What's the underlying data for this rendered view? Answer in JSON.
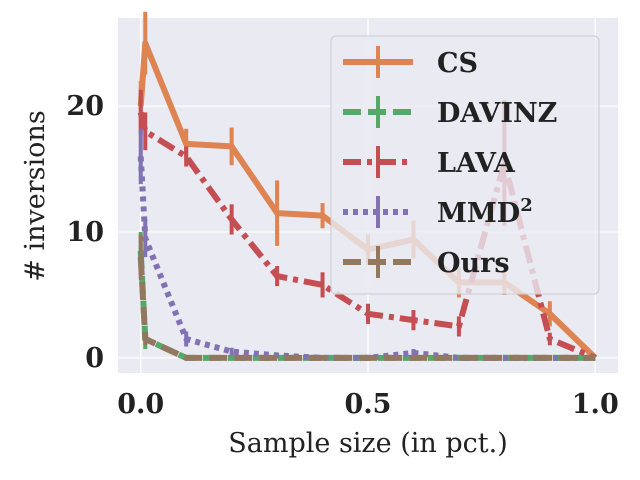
{
  "chart_data": {
    "type": "line",
    "title": "",
    "xlabel": "Sample size (in pct.)",
    "ylabel": "# inversions",
    "xlim": [
      -0.05,
      1.05
    ],
    "ylim": [
      -1.2,
      27.0
    ],
    "xticks": [
      0.0,
      0.5,
      1.0
    ],
    "xtick_labels": [
      "0.0",
      "0.5",
      "1.0"
    ],
    "yticks": [
      0,
      10,
      20
    ],
    "ytick_labels": [
      "0",
      "10",
      "20"
    ],
    "grid": true,
    "legend_position": "top-right",
    "x": [
      0.0,
      0.01,
      0.1,
      0.2,
      0.3,
      0.4,
      0.5,
      0.6,
      0.7,
      0.8,
      0.9,
      1.0
    ],
    "series": [
      {
        "name": "CS",
        "label_main": "CS",
        "color": "#dd8452",
        "dash": "solid",
        "values": [
          20,
          25,
          17,
          16.8,
          11.5,
          11.3,
          8.6,
          9.4,
          6.0,
          6.0,
          3.5,
          0.0
        ],
        "errors": [
          2.0,
          2.5,
          1.2,
          1.5,
          2.6,
          1.0,
          1.2,
          1.5,
          1.2,
          1.0,
          1.0,
          0.0
        ]
      },
      {
        "name": "DAVINZ",
        "label_main": "DAVINZ",
        "color": "#55a868",
        "dash": "dashed",
        "values": [
          8.5,
          1.5,
          0,
          0,
          0,
          0,
          0,
          0,
          0,
          0,
          0,
          0
        ],
        "errors": [
          1.5,
          0.8,
          0,
          0,
          0,
          0,
          0,
          0,
          0,
          0,
          0,
          0
        ]
      },
      {
        "name": "LAVA",
        "label_main": "LAVA",
        "color": "#c44e52",
        "dash": "dashdot",
        "values": [
          19.5,
          18,
          16,
          11,
          6.5,
          5.8,
          3.5,
          3.0,
          2.5,
          15.5,
          1.5,
          0.0
        ],
        "errors": [
          1.8,
          1.5,
          0.8,
          1.2,
          0.8,
          1.0,
          0.8,
          0.8,
          0.8,
          5.0,
          0.5,
          0.0
        ]
      },
      {
        "name": "MMD²",
        "label_main": "MMD",
        "label_sup": "2",
        "color": "#8172b3",
        "dash": "dotted",
        "values": [
          16,
          9.5,
          1.5,
          0.5,
          0.2,
          0.0,
          0.0,
          0.4,
          0.0,
          0.0,
          0.0,
          0.0
        ],
        "errors": [
          2.2,
          1.5,
          0.6,
          0.3,
          0.2,
          0,
          0,
          0.3,
          0,
          0,
          0,
          0
        ]
      },
      {
        "name": "Ours",
        "label_main": "Ours",
        "color": "#937860",
        "dash": "dashed",
        "values": [
          8.0,
          1.5,
          0,
          0,
          0,
          0,
          0,
          0,
          0,
          0,
          0,
          0
        ],
        "errors": [
          1.8,
          0.5,
          0,
          0,
          0,
          0,
          0,
          0,
          0,
          0,
          0,
          0
        ]
      }
    ]
  }
}
